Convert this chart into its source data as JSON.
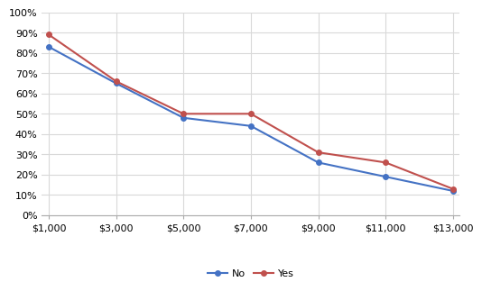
{
  "x_labels": [
    "$1,000",
    "$3,000",
    "$5,000",
    "$7,000",
    "$9,000",
    "$11,000",
    "$13,000"
  ],
  "x_values": [
    1000,
    3000,
    5000,
    7000,
    9000,
    11000,
    13000
  ],
  "no_values": [
    0.83,
    0.65,
    0.48,
    0.44,
    0.26,
    0.19,
    0.12
  ],
  "yes_values": [
    0.89,
    0.66,
    0.5,
    0.5,
    0.31,
    0.26,
    0.13
  ],
  "no_color": "#4472C4",
  "yes_color": "#C0504D",
  "no_label": "No",
  "yes_label": "Yes",
  "ylim": [
    0,
    1.0
  ],
  "ytick_step": 0.1,
  "background_color": "#ffffff",
  "grid_color": "#d9d9d9",
  "marker": "o",
  "marker_size": 4,
  "line_width": 1.5
}
